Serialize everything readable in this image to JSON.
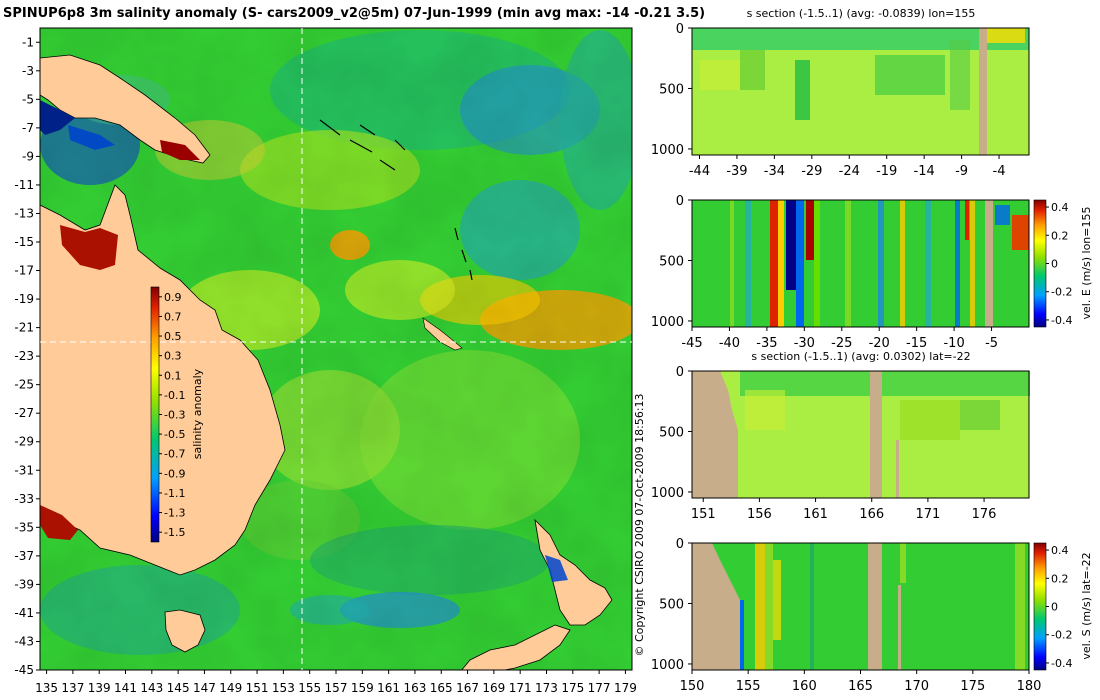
{
  "title": "SPINUP6p8 3m salinity anomaly (S- cars2009_v2@5m) 07-Jun-1999 (min avg max: -14 -0.21 3.5)",
  "copyright": "© Copyright CSIRO 2009   07-Oct-2009 18:56:13",
  "colors": {
    "land_map": "#ffcc99",
    "land_section": "#c8ad8a",
    "crosshair": "#ffffff"
  },
  "chart_data": [
    {
      "type": "heatmap",
      "name": "map",
      "title": "SPINUP6p8 3m salinity anomaly (S- cars2009_v2@5m) 07-Jun-1999 (min avg max: -14 -0.21 3.5)",
      "xlim": [
        134.5,
        179.5
      ],
      "ylim": [
        -45,
        0
      ],
      "xticks": [
        135,
        137,
        139,
        141,
        143,
        145,
        147,
        149,
        151,
        153,
        155,
        157,
        159,
        161,
        163,
        165,
        167,
        169,
        171,
        173,
        175,
        177,
        179
      ],
      "yticks": [
        -1,
        -3,
        -5,
        -7,
        -9,
        -11,
        -13,
        -15,
        -17,
        -19,
        -21,
        -23,
        -25,
        -27,
        -29,
        -31,
        -33,
        -35,
        -37,
        -39,
        -41,
        -43,
        -45
      ],
      "crosshair": {
        "lon": 155,
        "lat": -22
      },
      "colorbar": {
        "label": "salinity anomaly",
        "ticks": [
          "0.9",
          "0.7",
          "0.5",
          "0.3",
          "0.1",
          "-0.1",
          "-0.3",
          "-0.5",
          "-0.7",
          "-0.9",
          "-1.1",
          "-1.3",
          "-1.5"
        ],
        "range": [
          -1.6,
          1.0
        ]
      }
    },
    {
      "type": "heatmap",
      "name": "salinity section lon=155",
      "title": "s section (-1.5..1) (avg: -0.0839) lon=155",
      "xlim": [
        -45,
        0
      ],
      "ylim": [
        1050,
        0
      ],
      "xticks": [
        "-44",
        "-39",
        "-34",
        "-29",
        "-24",
        "-19",
        "-14",
        "-9",
        "-4"
      ],
      "yticks": [
        "0",
        "500",
        "1000"
      ]
    },
    {
      "type": "heatmap",
      "name": "eastward velocity section lon=155",
      "title": "",
      "xlim": [
        -45,
        0
      ],
      "ylim": [
        1050,
        0
      ],
      "xticks": [
        "-45",
        "-40",
        "-35",
        "-30",
        "-25",
        "-20",
        "-15",
        "-10",
        "-5"
      ],
      "yticks": [
        "0",
        "500",
        "1000"
      ],
      "colorbar": {
        "label": "vel. E (m/s) lon=155",
        "ticks": [
          "0.4",
          "0.2",
          "0",
          "-0.2",
          "-0.4"
        ],
        "range": [
          -0.45,
          0.45
        ]
      }
    },
    {
      "type": "heatmap",
      "name": "salinity section lat=-22",
      "title": "s section (-1.5..1) (avg: 0.0302) lat=-22",
      "xlim": [
        150,
        180
      ],
      "ylim": [
        1050,
        0
      ],
      "xticks": [
        "151",
        "156",
        "161",
        "166",
        "171",
        "176"
      ],
      "yticks": [
        "0",
        "500",
        "1000"
      ]
    },
    {
      "type": "heatmap",
      "name": "southward velocity section lat=-22",
      "title": "",
      "xlim": [
        150,
        180
      ],
      "ylim": [
        1050,
        0
      ],
      "xticks": [
        "150",
        "155",
        "160",
        "165",
        "170",
        "175",
        "180"
      ],
      "yticks": [
        "0",
        "500",
        "1000"
      ],
      "colorbar": {
        "label": "vel. S (m/s) lat=-22",
        "ticks": [
          "0.4",
          "0.2",
          "0",
          "-0.2",
          "-0.4"
        ],
        "range": [
          -0.45,
          0.45
        ]
      }
    }
  ]
}
